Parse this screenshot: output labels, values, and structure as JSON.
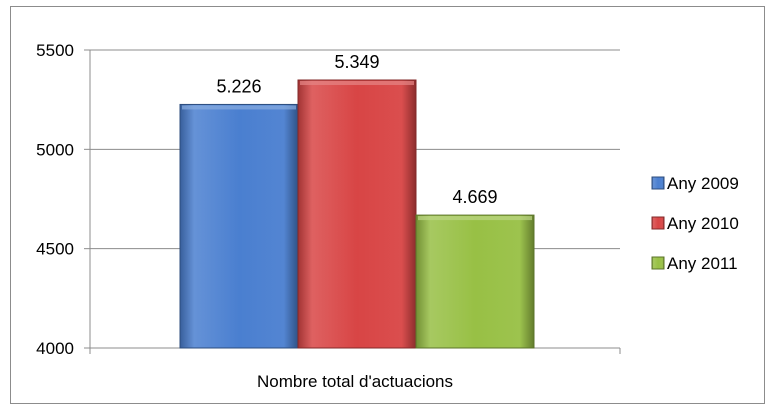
{
  "chart_data": {
    "type": "bar",
    "categories": [
      "Nombre total d'actuacions"
    ],
    "series": [
      {
        "name": "Any 2009",
        "values": [
          5226
        ],
        "label": "5.226",
        "color": "#4a7fd0"
      },
      {
        "name": "Any 2010",
        "values": [
          5349
        ],
        "label": "5.349",
        "color": "#d84545"
      },
      {
        "name": "Any 2011",
        "values": [
          4669
        ],
        "label": "4.669",
        "color": "#98c045"
      }
    ],
    "ylim": [
      4000,
      5500
    ],
    "yticks": [
      4000,
      4500,
      5000,
      5500
    ],
    "ytick_labels": [
      "4000",
      "4500",
      "5000",
      "5500"
    ],
    "grid": true,
    "legend_position": "right",
    "title": "",
    "xlabel": "",
    "ylabel": ""
  }
}
